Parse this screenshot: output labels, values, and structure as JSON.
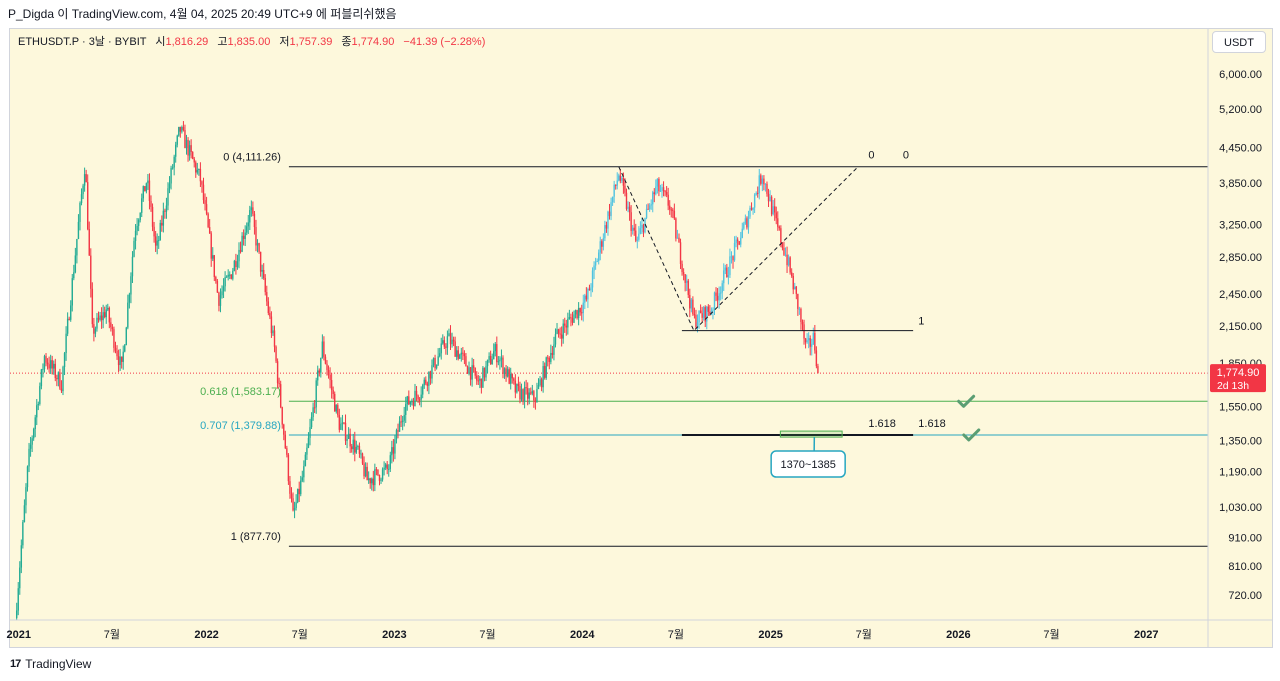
{
  "header": {
    "attribution": "P_Digda 이 TradingView.com, 4월 04, 2025 20:49 UTC+9 에 퍼블리쉬했음"
  },
  "legend": {
    "symbol": "ETHUSDT.P · 3날 · BYBIT",
    "open_label": "시",
    "open": "1,816.29",
    "high_label": "고",
    "high": "1,835.00",
    "low_label": "저",
    "low": "1,757.39",
    "close_label": "종",
    "close": "1,774.90",
    "change": "−41.39 (−2.28%)"
  },
  "currency_button": "USDT",
  "footer": {
    "brand": "TradingView",
    "logo_mark": "17"
  },
  "colors": {
    "background": "#fdf8dc",
    "up": "#22ab94",
    "up_light": "#4fc3e0",
    "down": "#f23645",
    "line": "#131722",
    "fib_green": "#4caf50",
    "fib_cyan": "#26a6c1",
    "current_price": "#f23645",
    "check": "#5b9e73"
  },
  "chart_data": {
    "type": "candlestick",
    "y_scale": "log",
    "ylim": [
      650,
      7200
    ],
    "xlim": [
      "2020-12-15",
      "2027-05-01"
    ],
    "y_ticks": [
      {
        "value": 6000,
        "label": "6,000.00"
      },
      {
        "value": 5200,
        "label": "5,200.00"
      },
      {
        "value": 4450,
        "label": "4,450.00"
      },
      {
        "value": 3850,
        "label": "3,850.00"
      },
      {
        "value": 3250,
        "label": "3,250.00"
      },
      {
        "value": 2850,
        "label": "2,850.00"
      },
      {
        "value": 2450,
        "label": "2,450.00"
      },
      {
        "value": 2150,
        "label": "2,150.00"
      },
      {
        "value": 1850,
        "label": "1,850.00"
      },
      {
        "value": 1550,
        "label": "1,550.00"
      },
      {
        "value": 1350,
        "label": "1,350.00"
      },
      {
        "value": 1190,
        "label": "1,190.00"
      },
      {
        "value": 1030,
        "label": "1,030.00"
      },
      {
        "value": 910,
        "label": "910.00"
      },
      {
        "value": 810,
        "label": "810.00"
      },
      {
        "value": 720,
        "label": "720.00"
      }
    ],
    "x_ticks": [
      {
        "date": "2021-01-01",
        "label": "2021",
        "bold": true
      },
      {
        "date": "2021-07-01",
        "label": "7월",
        "bold": false
      },
      {
        "date": "2022-01-01",
        "label": "2022",
        "bold": true
      },
      {
        "date": "2022-07-01",
        "label": "7월",
        "bold": false
      },
      {
        "date": "2023-01-01",
        "label": "2023",
        "bold": true
      },
      {
        "date": "2023-07-01",
        "label": "7월",
        "bold": false
      },
      {
        "date": "2024-01-01",
        "label": "2024",
        "bold": true
      },
      {
        "date": "2024-07-01",
        "label": "7월",
        "bold": false
      },
      {
        "date": "2025-01-01",
        "label": "2025",
        "bold": true
      },
      {
        "date": "2025-07-01",
        "label": "7월",
        "bold": false
      },
      {
        "date": "2026-01-01",
        "label": "2026",
        "bold": true
      },
      {
        "date": "2026-07-01",
        "label": "7월",
        "bold": false
      },
      {
        "date": "2027-01-01",
        "label": "2027",
        "bold": true
      }
    ],
    "price_path": [
      [
        "2020-12-28",
        700
      ],
      [
        "2021-01-20",
        1250
      ],
      [
        "2021-02-20",
        1900
      ],
      [
        "2021-03-25",
        1700
      ],
      [
        "2021-05-10",
        4200
      ],
      [
        "2021-05-24",
        2100
      ],
      [
        "2021-06-20",
        2300
      ],
      [
        "2021-07-20",
        1800
      ],
      [
        "2021-08-15",
        3200
      ],
      [
        "2021-09-07",
        3900
      ],
      [
        "2021-09-25",
        2900
      ],
      [
        "2021-11-10",
        4800
      ],
      [
        "2021-12-20",
        3900
      ],
      [
        "2022-01-24",
        2400
      ],
      [
        "2022-02-20",
        2700
      ],
      [
        "2022-03-28",
        3450
      ],
      [
        "2022-05-12",
        2000
      ],
      [
        "2022-06-18",
        990
      ],
      [
        "2022-07-10",
        1200
      ],
      [
        "2022-08-14",
        1980
      ],
      [
        "2022-09-15",
        1450
      ],
      [
        "2022-10-20",
        1300
      ],
      [
        "2022-11-09",
        1150
      ],
      [
        "2022-12-20",
        1200
      ],
      [
        "2023-01-20",
        1550
      ],
      [
        "2023-02-20",
        1650
      ],
      [
        "2023-04-15",
        2050
      ],
      [
        "2023-06-15",
        1700
      ],
      [
        "2023-07-15",
        1950
      ],
      [
        "2023-08-25",
        1650
      ],
      [
        "2023-10-01",
        1600
      ],
      [
        "2023-11-10",
        2050
      ],
      [
        "2024-01-10",
        2400
      ],
      [
        "2024-03-12",
        4000
      ],
      [
        "2024-04-15",
        3000
      ],
      [
        "2024-05-25",
        3800
      ],
      [
        "2024-06-20",
        3500
      ],
      [
        "2024-08-05",
        2200
      ],
      [
        "2024-09-07",
        2300
      ],
      [
        "2024-10-01",
        2600
      ],
      [
        "2024-11-10",
        3200
      ],
      [
        "2024-12-16",
        4000
      ],
      [
        "2025-01-10",
        3300
      ],
      [
        "2025-02-03",
        2800
      ],
      [
        "2025-02-25",
        2300
      ],
      [
        "2025-03-11",
        1950
      ],
      [
        "2025-03-26",
        2050
      ],
      [
        "2025-04-04",
        1775
      ]
    ],
    "last_price": {
      "value": 1774.9,
      "label": "1,774.90",
      "countdown": "2d 13h"
    },
    "fib_levels": [
      {
        "label": "0 (4,111.26)",
        "value": 4111.26,
        "color": "#131722",
        "from": "2022-06-10",
        "to": "2027-04-30"
      },
      {
        "label": "0.618 (1,583.17)",
        "value": 1583.17,
        "color": "#4caf50",
        "from": "2022-06-10",
        "to": "2027-04-30"
      },
      {
        "label": "0.707 (1,379.88)",
        "value": 1379.88,
        "color": "#26a6c1",
        "from": "2022-06-10",
        "to": "2027-04-30"
      },
      {
        "label": "1 (877.70)",
        "value": 877.7,
        "color": "#131722",
        "from": "2022-06-10",
        "to": "2027-04-30"
      }
    ],
    "projection": {
      "points": [
        {
          "date": "2024-03-12",
          "value": 4111
        },
        {
          "date": "2024-08-05",
          "value": 2110
        },
        {
          "date": "2025-06-20",
          "value": 4111
        }
      ],
      "level_0_label": "0",
      "level_0_right_label": "0",
      "level_1_label": "1",
      "level_1_value": 2110,
      "level_1618_label": "1.618",
      "level_1618_right_label": "1.618",
      "level_1618_value": 1379.88
    },
    "target_box": {
      "from": "2025-01-20",
      "to": "2025-05-20",
      "low": 1370,
      "high": 1385
    },
    "target_callout": "1370~1385",
    "checkmarks": [
      {
        "date": "2026-01-15",
        "value": 1583
      },
      {
        "date": "2026-01-25",
        "value": 1380
      }
    ]
  }
}
